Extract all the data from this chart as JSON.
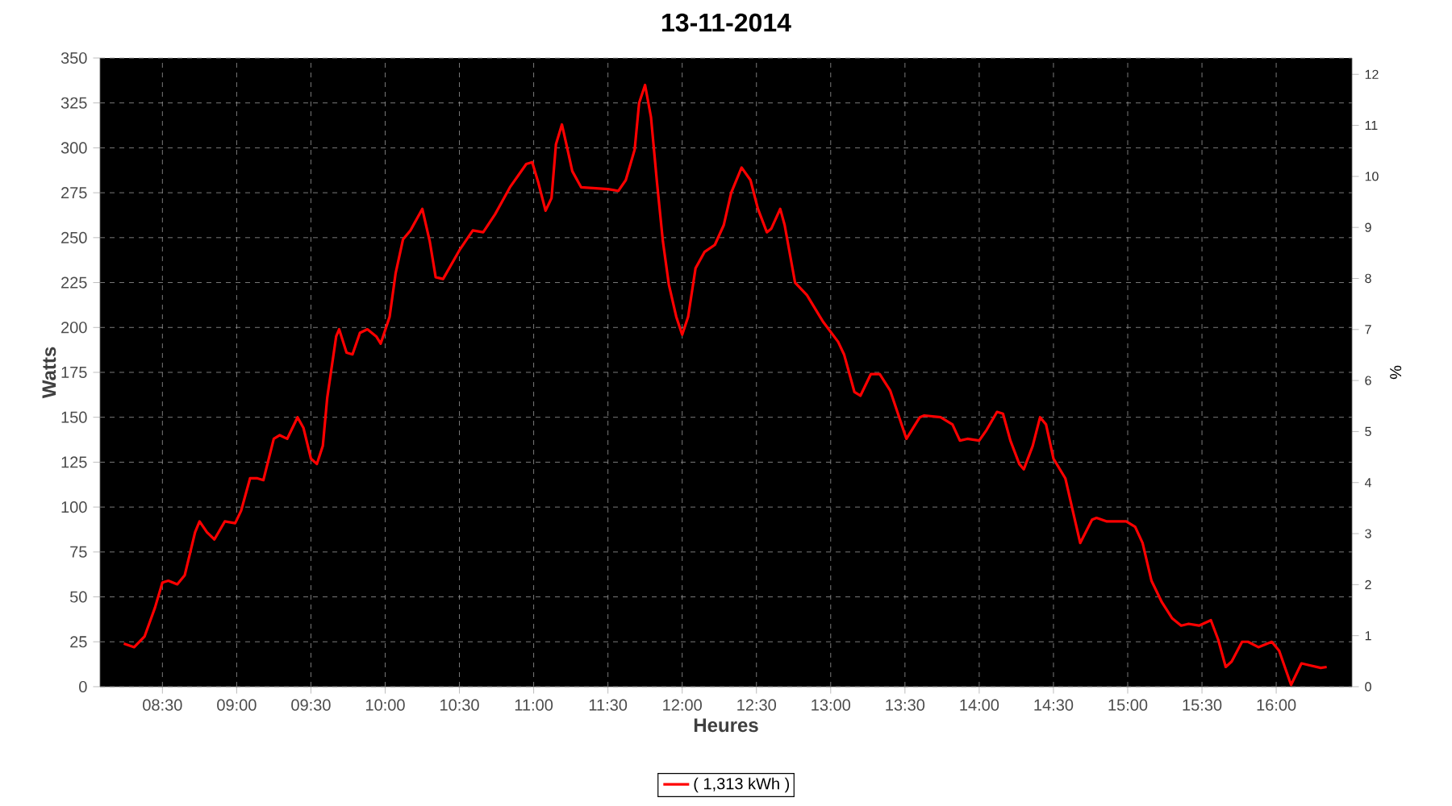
{
  "chart_data": {
    "type": "line",
    "title": "13-11-2014",
    "xlabel": "Heures",
    "ylabel": "Watts",
    "y2label": "%",
    "x": [
      8.24,
      8.31,
      8.38,
      8.45,
      8.5,
      8.54,
      8.6,
      8.65,
      8.72,
      8.75,
      8.8,
      8.85,
      8.92,
      8.99,
      9.03,
      9.09,
      9.14,
      9.18,
      9.25,
      9.29,
      9.34,
      9.41,
      9.45,
      9.5,
      9.54,
      9.58,
      9.61,
      9.67,
      9.69,
      9.74,
      9.78,
      9.83,
      9.88,
      9.94,
      9.97,
      10.03,
      10.07,
      10.12,
      10.17,
      10.25,
      10.3,
      10.34,
      10.39,
      10.5,
      10.59,
      10.66,
      10.74,
      10.84,
      10.95,
      10.99,
      11.03,
      11.08,
      11.12,
      11.15,
      11.19,
      11.22,
      11.26,
      11.32,
      11.5,
      11.57,
      11.62,
      11.68,
      11.71,
      11.75,
      11.79,
      11.83,
      11.87,
      11.91,
      11.96,
      12.0,
      12.04,
      12.09,
      12.15,
      12.22,
      12.28,
      12.33,
      12.4,
      12.46,
      12.51,
      12.57,
      12.6,
      12.66,
      12.69,
      12.76,
      12.84,
      12.95,
      13.05,
      13.09,
      13.16,
      13.2,
      13.27,
      13.33,
      13.4,
      13.51,
      13.6,
      13.63,
      13.74,
      13.82,
      13.87,
      13.92,
      14.0,
      14.05,
      14.12,
      14.16,
      14.21,
      14.27,
      14.3,
      14.36,
      14.41,
      14.45,
      14.5,
      14.58,
      14.63,
      14.68,
      14.76,
      14.79,
      14.86,
      14.99,
      15.05,
      15.1,
      15.16,
      15.23,
      15.3,
      15.36,
      15.41,
      15.48,
      15.56,
      15.61,
      15.66,
      15.7,
      15.77,
      15.81,
      15.88,
      15.97,
      16.02,
      16.1,
      16.17,
      16.22,
      16.3,
      16.34
    ],
    "series": [
      {
        "name": "( 1,313 kWh )",
        "color": "#ff0000",
        "values": [
          24,
          22,
          28,
          44,
          58,
          59,
          57,
          62,
          86,
          92,
          86,
          82,
          92,
          91,
          98,
          116,
          116,
          115,
          138,
          140,
          138,
          150,
          144,
          127,
          124,
          134,
          161,
          195,
          199,
          186,
          185,
          197,
          199,
          195,
          191,
          206,
          230,
          249,
          254,
          266,
          248,
          228,
          227,
          243,
          254,
          253,
          263,
          278,
          291,
          292,
          281,
          265,
          272,
          302,
          313,
          302,
          287,
          278,
          277,
          276,
          282,
          299,
          325,
          335,
          317,
          281,
          248,
          224,
          206,
          196,
          206,
          233,
          242,
          246,
          257,
          275,
          289,
          282,
          266,
          253,
          255,
          266,
          257,
          225,
          218,
          203,
          192,
          185,
          164,
          162,
          174,
          174,
          165,
          138,
          150,
          151,
          150,
          146,
          137,
          138,
          137,
          143,
          153,
          152,
          137,
          124,
          121,
          134,
          150,
          146,
          127,
          116,
          98,
          80,
          93,
          94,
          92,
          92,
          89,
          80,
          59,
          47,
          38,
          34,
          35,
          34,
          37,
          26,
          11,
          14,
          25,
          25,
          22,
          25,
          20,
          1,
          13,
          12,
          10.5,
          11
        ]
      }
    ],
    "xlim": [
      8.08,
      16.51
    ],
    "xticks": [
      {
        "value": 8.5,
        "label": "08:30"
      },
      {
        "value": 9,
        "label": "09:00"
      },
      {
        "value": 9.5,
        "label": "09:30"
      },
      {
        "value": 10,
        "label": "10:00"
      },
      {
        "value": 10.5,
        "label": "10:30"
      },
      {
        "value": 11,
        "label": "11:00"
      },
      {
        "value": 11.5,
        "label": "11:30"
      },
      {
        "value": 12,
        "label": "12:00"
      },
      {
        "value": 12.5,
        "label": "12:30"
      },
      {
        "value": 13,
        "label": "13:00"
      },
      {
        "value": 13.5,
        "label": "13:30"
      },
      {
        "value": 14,
        "label": "14:00"
      },
      {
        "value": 14.5,
        "label": "14:30"
      },
      {
        "value": 15,
        "label": "15:00"
      },
      {
        "value": 15.5,
        "label": "15:30"
      },
      {
        "value": 16,
        "label": "16:00"
      }
    ],
    "ylim": [
      0,
      350
    ],
    "yticks": [
      0,
      25,
      50,
      75,
      100,
      125,
      150,
      175,
      200,
      225,
      250,
      275,
      300,
      325,
      350
    ],
    "y2lim": [
      0,
      12.32
    ],
    "y2ticks": [
      0,
      1,
      2,
      3,
      4,
      5,
      6,
      7,
      8,
      9,
      10,
      11,
      12
    ],
    "grid": true,
    "legend": "bottom"
  }
}
